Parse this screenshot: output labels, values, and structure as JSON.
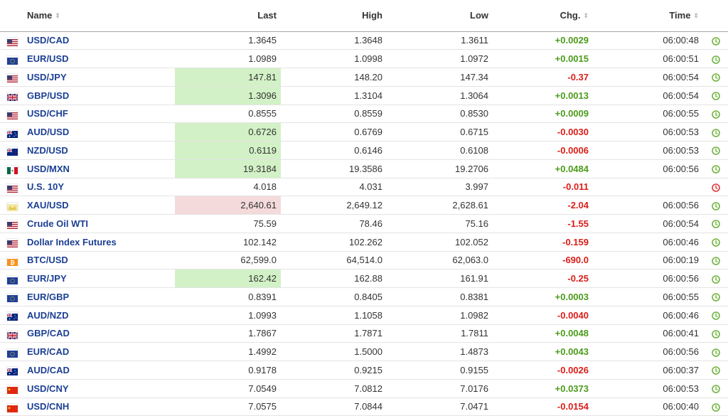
{
  "headers": {
    "name": "Name",
    "last": "Last",
    "high": "High",
    "low": "Low",
    "chg": "Chg.",
    "time": "Time"
  },
  "colors": {
    "up": "#4b9b1a",
    "down": "#d91e18",
    "highlight_up": "#d2f1c6",
    "highlight_down": "#f4dada",
    "clock_live": "#6fb43f",
    "clock_closed": "#e0393e"
  },
  "rows": [
    {
      "flag": "us",
      "name": "USD/CAD",
      "last": "1.3645",
      "high": "1.3648",
      "low": "1.3611",
      "chg": "+0.0029",
      "dir": "up",
      "time": "06:00:48",
      "clock": "live",
      "hl": ""
    },
    {
      "flag": "eu",
      "name": "EUR/USD",
      "last": "1.0989",
      "high": "1.0998",
      "low": "1.0972",
      "chg": "+0.0015",
      "dir": "up",
      "time": "06:00:51",
      "clock": "live",
      "hl": ""
    },
    {
      "flag": "us",
      "name": "USD/JPY",
      "last": "147.81",
      "high": "148.20",
      "low": "147.34",
      "chg": "-0.37",
      "dir": "down",
      "time": "06:00:54",
      "clock": "live",
      "hl": "up"
    },
    {
      "flag": "gb",
      "name": "GBP/USD",
      "last": "1.3096",
      "high": "1.3104",
      "low": "1.3064",
      "chg": "+0.0013",
      "dir": "up",
      "time": "06:00:54",
      "clock": "live",
      "hl": "up"
    },
    {
      "flag": "us",
      "name": "USD/CHF",
      "last": "0.8555",
      "high": "0.8559",
      "low": "0.8530",
      "chg": "+0.0009",
      "dir": "up",
      "time": "06:00:55",
      "clock": "live",
      "hl": ""
    },
    {
      "flag": "au",
      "name": "AUD/USD",
      "last": "0.6726",
      "high": "0.6769",
      "low": "0.6715",
      "chg": "-0.0030",
      "dir": "down",
      "time": "06:00:53",
      "clock": "live",
      "hl": "up"
    },
    {
      "flag": "nz",
      "name": "NZD/USD",
      "last": "0.6119",
      "high": "0.6146",
      "low": "0.6108",
      "chg": "-0.0006",
      "dir": "down",
      "time": "06:00:53",
      "clock": "live",
      "hl": "up"
    },
    {
      "flag": "mx",
      "name": "USD/MXN",
      "last": "19.3184",
      "high": "19.3586",
      "low": "19.2706",
      "chg": "+0.0484",
      "dir": "up",
      "time": "06:00:56",
      "clock": "live",
      "hl": "up"
    },
    {
      "flag": "us",
      "name": "U.S. 10Y",
      "last": "4.018",
      "high": "4.031",
      "low": "3.997",
      "chg": "-0.011",
      "dir": "down",
      "time": "",
      "clock": "closed",
      "hl": ""
    },
    {
      "flag": "gold",
      "name": "XAU/USD",
      "last": "2,640.61",
      "high": "2,649.12",
      "low": "2,628.61",
      "chg": "-2.04",
      "dir": "down",
      "time": "06:00:56",
      "clock": "live",
      "hl": "down"
    },
    {
      "flag": "us",
      "name": "Crude Oil WTI",
      "last": "75.59",
      "high": "78.46",
      "low": "75.16",
      "chg": "-1.55",
      "dir": "down",
      "time": "06:00:54",
      "clock": "live",
      "hl": ""
    },
    {
      "flag": "us",
      "name": "Dollar Index Futures",
      "last": "102.142",
      "high": "102.262",
      "low": "102.052",
      "chg": "-0.159",
      "dir": "down",
      "time": "06:00:46",
      "clock": "live",
      "hl": ""
    },
    {
      "flag": "btc",
      "name": "BTC/USD",
      "last": "62,599.0",
      "high": "64,514.0",
      "low": "62,063.0",
      "chg": "-690.0",
      "dir": "down",
      "time": "06:00:19",
      "clock": "live",
      "hl": ""
    },
    {
      "flag": "eu",
      "name": "EUR/JPY",
      "last": "162.42",
      "high": "162.88",
      "low": "161.91",
      "chg": "-0.25",
      "dir": "down",
      "time": "06:00:56",
      "clock": "live",
      "hl": "up"
    },
    {
      "flag": "eu",
      "name": "EUR/GBP",
      "last": "0.8391",
      "high": "0.8405",
      "low": "0.8381",
      "chg": "+0.0003",
      "dir": "up",
      "time": "06:00:55",
      "clock": "live",
      "hl": ""
    },
    {
      "flag": "au",
      "name": "AUD/NZD",
      "last": "1.0993",
      "high": "1.1058",
      "low": "1.0982",
      "chg": "-0.0040",
      "dir": "down",
      "time": "06:00:46",
      "clock": "live",
      "hl": ""
    },
    {
      "flag": "gb",
      "name": "GBP/CAD",
      "last": "1.7867",
      "high": "1.7871",
      "low": "1.7811",
      "chg": "+0.0048",
      "dir": "up",
      "time": "06:00:41",
      "clock": "live",
      "hl": ""
    },
    {
      "flag": "eu",
      "name": "EUR/CAD",
      "last": "1.4992",
      "high": "1.5000",
      "low": "1.4873",
      "chg": "+0.0043",
      "dir": "up",
      "time": "06:00:56",
      "clock": "live",
      "hl": ""
    },
    {
      "flag": "au",
      "name": "AUD/CAD",
      "last": "0.9178",
      "high": "0.9215",
      "low": "0.9155",
      "chg": "-0.0026",
      "dir": "down",
      "time": "06:00:37",
      "clock": "live",
      "hl": ""
    },
    {
      "flag": "cn",
      "name": "USD/CNY",
      "last": "7.0549",
      "high": "7.0812",
      "low": "7.0176",
      "chg": "+0.0373",
      "dir": "up",
      "time": "06:00:53",
      "clock": "live",
      "hl": ""
    },
    {
      "flag": "cn",
      "name": "USD/CNH",
      "last": "7.0575",
      "high": "7.0844",
      "low": "7.0471",
      "chg": "-0.0154",
      "dir": "down",
      "time": "06:00:40",
      "clock": "live",
      "hl": ""
    }
  ]
}
